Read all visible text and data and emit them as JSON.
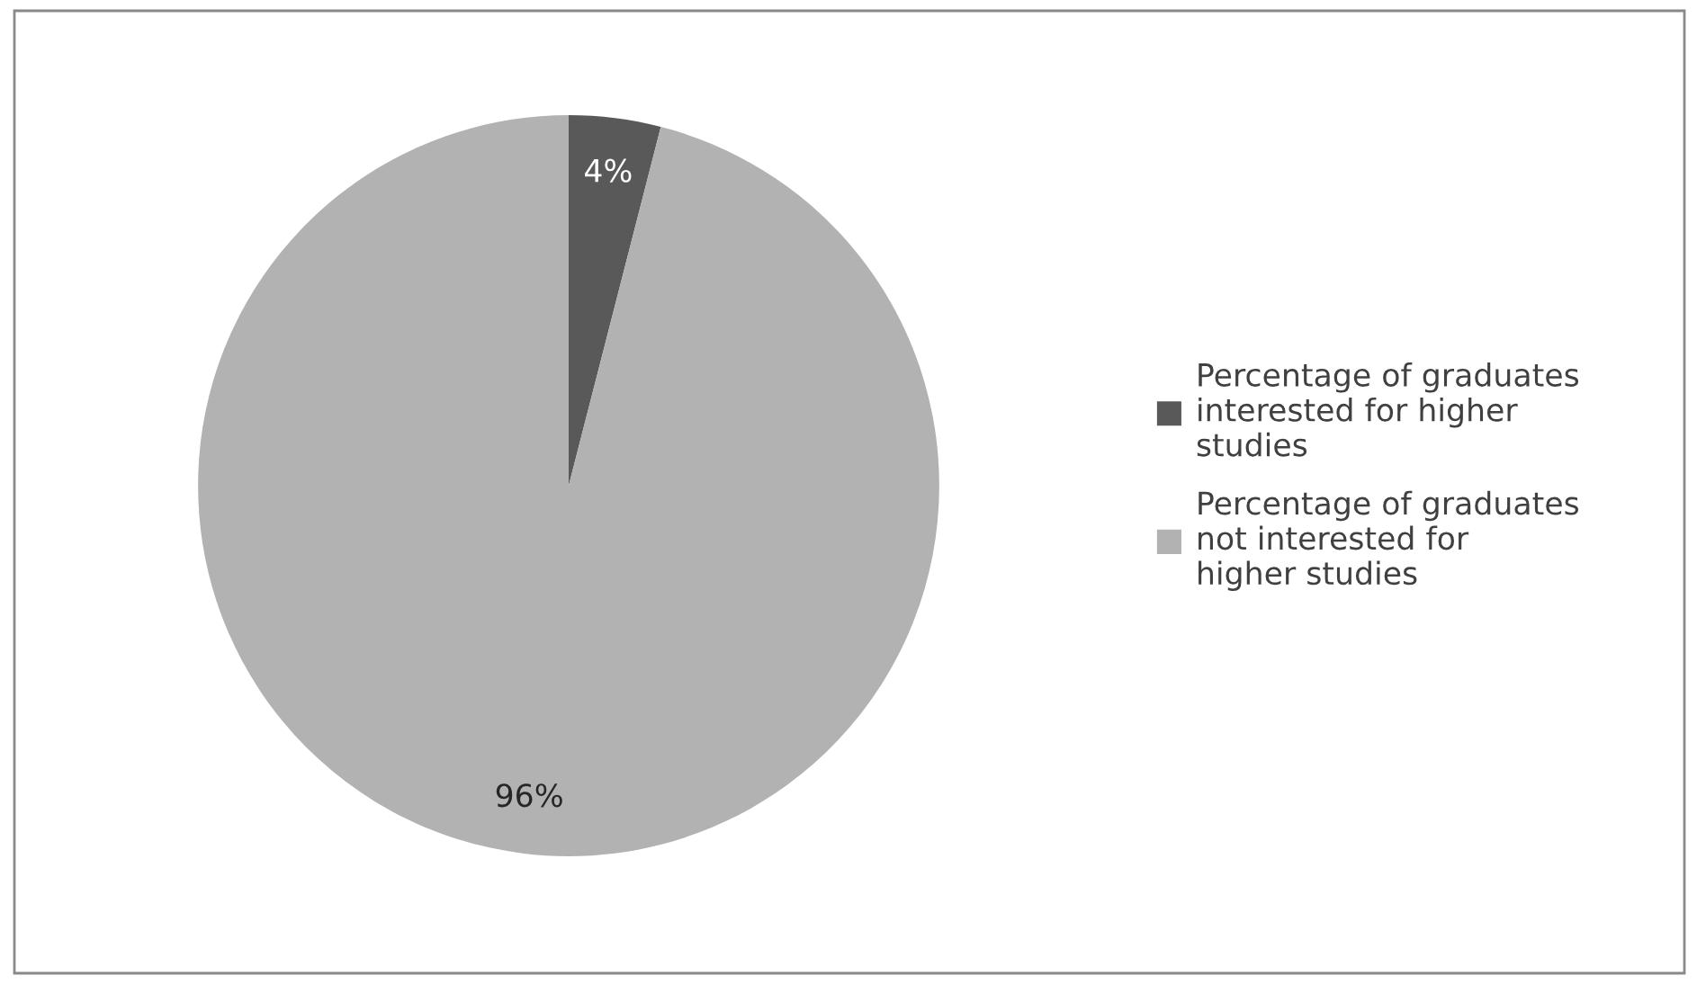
{
  "chart_data": {
    "type": "pie",
    "categories": [
      "Percentage of graduates interested for higher studies",
      "Percentage of graduates not interested for higher studies"
    ],
    "values": [
      4,
      96
    ],
    "colors": [
      "#595959",
      "#b2b2b2"
    ],
    "value_labels": [
      "4%",
      "96%"
    ],
    "legend": "right"
  }
}
